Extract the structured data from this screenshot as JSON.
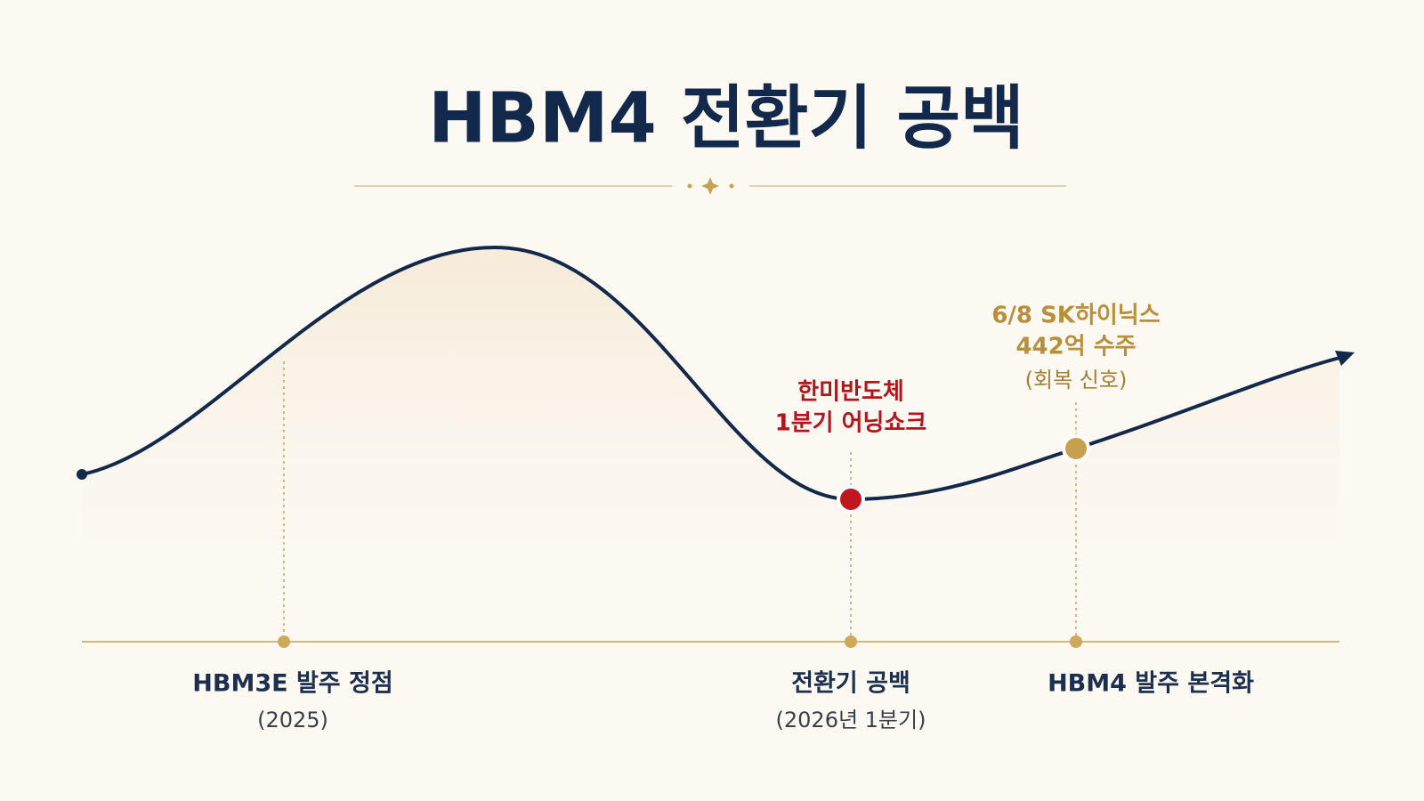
{
  "title": "HBM4 전환기 공백",
  "annotations": [
    {
      "lines": [
        "한미반도체",
        "1분기 어닝쇼크"
      ]
    },
    {
      "lines": [
        "6/8 SK하이닉스",
        "442억 수주",
        "(회복 신호)"
      ]
    }
  ],
  "timeline": [
    {
      "label": "HBM3E 발주 정점",
      "sub": "(2025)"
    },
    {
      "label": "전환기 공백",
      "sub": "(2026년 1분기)"
    },
    {
      "label": "HBM4 발주 본격화"
    }
  ]
}
